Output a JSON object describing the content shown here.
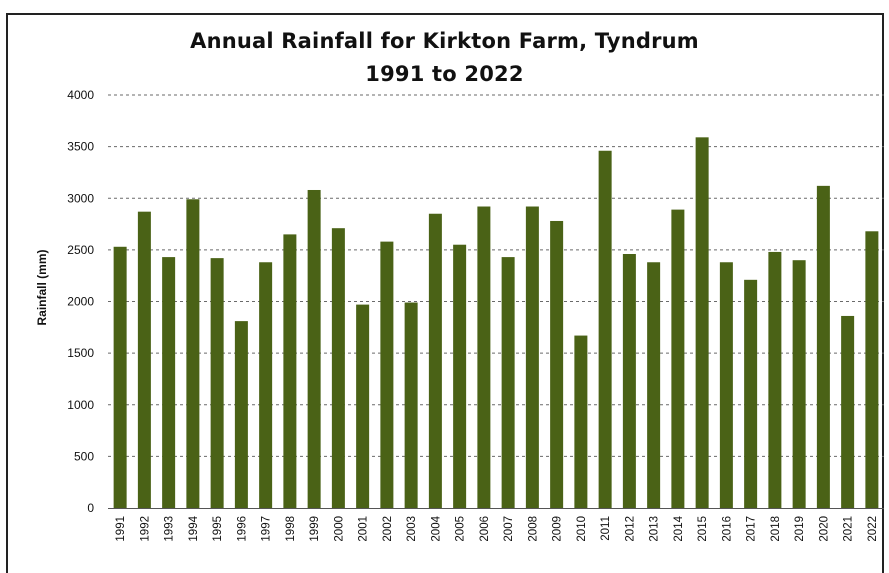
{
  "chart_data": {
    "type": "bar",
    "title": "Annual Rainfall for Kirkton Farm, Tyndrum",
    "subtitle": "1991 to 2022",
    "xlabel": "",
    "ylabel": "Rainfall (mm)",
    "ylim": [
      0,
      4000
    ],
    "yticks": [
      0,
      500,
      1000,
      1500,
      2000,
      2500,
      3000,
      3500,
      4000
    ],
    "grid": true,
    "bar_color": "#4a6216",
    "categories": [
      "1991",
      "1992",
      "1993",
      "1994",
      "1995",
      "1996",
      "1997",
      "1998",
      "1999",
      "2000",
      "2001",
      "2002",
      "2003",
      "2004",
      "2005",
      "2006",
      "2007",
      "2008",
      "2009",
      "2010",
      "2011",
      "2012",
      "2013",
      "2014",
      "2015",
      "2016",
      "2017",
      "2018",
      "2019",
      "2020",
      "2021",
      "2022"
    ],
    "values": [
      2530,
      2870,
      2430,
      2990,
      2420,
      1810,
      2380,
      2650,
      3080,
      2710,
      1970,
      2580,
      1990,
      2850,
      2550,
      2920,
      2430,
      2920,
      2780,
      1670,
      3460,
      2460,
      2380,
      2890,
      3590,
      2380,
      2210,
      2480,
      2400,
      3120,
      1860,
      2680
    ]
  }
}
